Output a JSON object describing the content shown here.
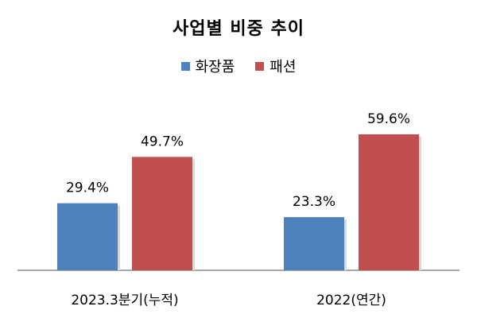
{
  "chart_data": {
    "type": "bar",
    "title": "사업별 비중 추이",
    "categories": [
      "2023.3분기(누적)",
      "2022(연간)"
    ],
    "series": [
      {
        "name": "화장품",
        "values": [
          29.4,
          23.3
        ],
        "labels": [
          "29.4%",
          "23.3%"
        ],
        "color": "#4f81bd"
      },
      {
        "name": "패션",
        "values": [
          49.7,
          59.6
        ],
        "labels": [
          "49.7%",
          "59.6%"
        ],
        "color": "#c0504d"
      }
    ],
    "ylim": [
      0,
      80
    ],
    "grid": false,
    "legend": "top-center"
  }
}
